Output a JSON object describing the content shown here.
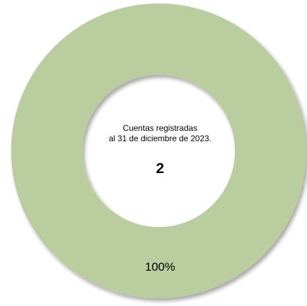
{
  "chart_data": {
    "type": "pie",
    "donut": true,
    "categories": [
      ""
    ],
    "values": [
      100
    ],
    "value_labels": [
      "100%"
    ],
    "colors": [
      "#b9cd9f"
    ],
    "center": {
      "line1": "Cuentas registradas",
      "line2": "al 31 de diciembre de 2023.",
      "value": "2"
    },
    "legend": "none"
  }
}
